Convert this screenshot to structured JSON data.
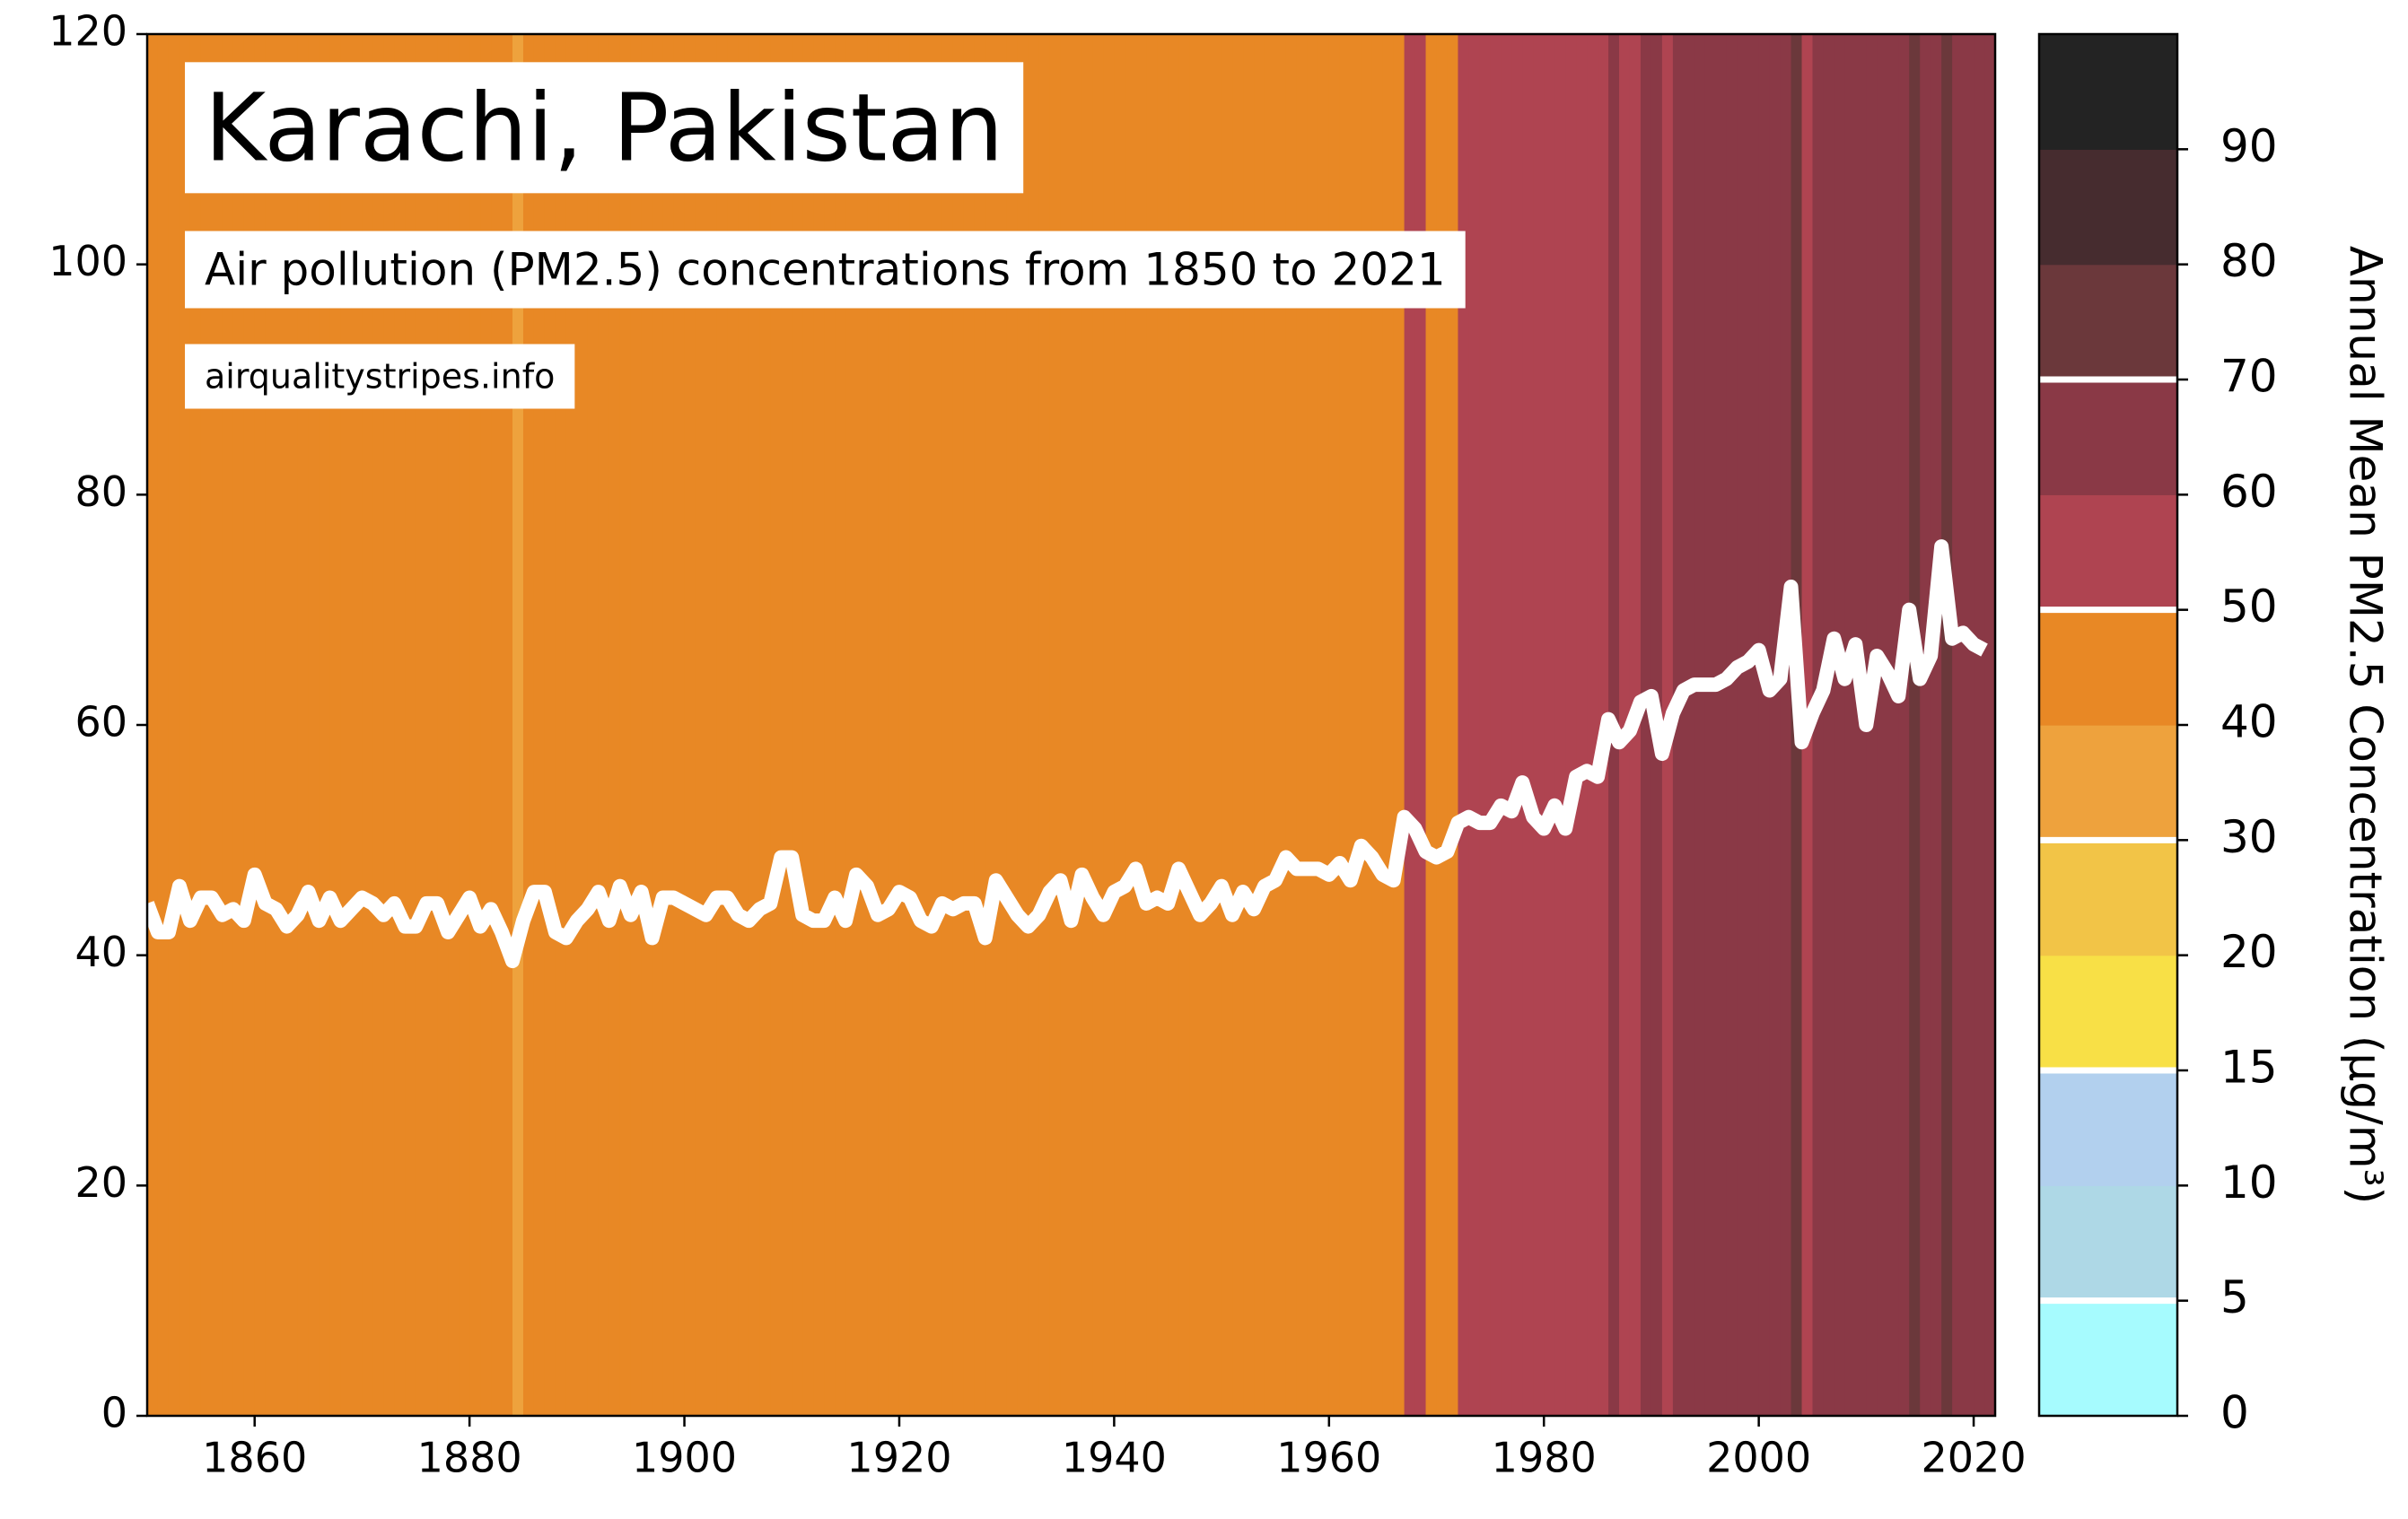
{
  "chart_data": {
    "type": "line",
    "title": "Karachi, Pakistan",
    "subtitle": "Air pollution (PM2.5) concentrations from 1850 to 2021",
    "source": "airqualitystripes.info",
    "colorbar_label": "Annual Mean PM2.5 Concentration (µg/m³)",
    "x": [
      1850,
      1851,
      1852,
      1853,
      1854,
      1855,
      1856,
      1857,
      1858,
      1859,
      1860,
      1861,
      1862,
      1863,
      1864,
      1865,
      1866,
      1867,
      1868,
      1869,
      1870,
      1871,
      1872,
      1873,
      1874,
      1875,
      1876,
      1877,
      1878,
      1879,
      1880,
      1881,
      1882,
      1883,
      1884,
      1885,
      1886,
      1887,
      1888,
      1889,
      1890,
      1891,
      1892,
      1893,
      1894,
      1895,
      1896,
      1897,
      1898,
      1899,
      1900,
      1901,
      1902,
      1903,
      1904,
      1905,
      1906,
      1907,
      1908,
      1909,
      1910,
      1911,
      1912,
      1913,
      1914,
      1915,
      1916,
      1917,
      1918,
      1919,
      1920,
      1921,
      1922,
      1923,
      1924,
      1925,
      1926,
      1927,
      1928,
      1929,
      1930,
      1931,
      1932,
      1933,
      1934,
      1935,
      1936,
      1937,
      1938,
      1939,
      1940,
      1941,
      1942,
      1943,
      1944,
      1945,
      1946,
      1947,
      1948,
      1949,
      1950,
      1951,
      1952,
      1953,
      1954,
      1955,
      1956,
      1957,
      1958,
      1959,
      1960,
      1961,
      1962,
      1963,
      1964,
      1965,
      1966,
      1967,
      1968,
      1969,
      1970,
      1971,
      1972,
      1973,
      1974,
      1975,
      1976,
      1977,
      1978,
      1979,
      1980,
      1981,
      1982,
      1983,
      1984,
      1985,
      1986,
      1987,
      1988,
      1989,
      1990,
      1991,
      1992,
      1993,
      1994,
      1995,
      1996,
      1997,
      1998,
      1999,
      2000,
      2001,
      2002,
      2003,
      2004,
      2005,
      2006,
      2007,
      2008,
      2009,
      2010,
      2011,
      2012,
      2013,
      2014,
      2015,
      2016,
      2017,
      2018,
      2019,
      2020,
      2021
    ],
    "values": [
      44.5,
      42,
      42,
      46,
      43,
      45,
      45,
      43.5,
      44,
      43,
      47,
      44.5,
      44,
      42.5,
      43.5,
      45.5,
      43,
      45,
      43,
      44,
      45,
      44.5,
      43.5,
      44.5,
      42.5,
      42.5,
      44.5,
      44.5,
      42,
      43.5,
      45,
      42.5,
      44,
      42,
      39.5,
      43,
      45.5,
      45.5,
      42,
      41.5,
      43,
      44,
      45.5,
      43,
      46,
      43.5,
      45.5,
      41.5,
      45,
      45,
      44.5,
      44,
      43.5,
      45,
      45,
      43.5,
      43,
      44,
      44.5,
      48.5,
      48.5,
      43.5,
      43,
      43,
      45,
      43,
      47,
      46,
      43.5,
      44,
      45.5,
      45,
      43,
      42.5,
      44.5,
      44,
      44.5,
      44.5,
      41.5,
      46.5,
      45,
      43.5,
      42.5,
      43.5,
      45.5,
      46.5,
      43,
      47,
      45,
      43.5,
      45.5,
      46,
      47.5,
      44.5,
      45,
      44.5,
      47.5,
      45.5,
      43.5,
      44.5,
      46,
      43.5,
      45.5,
      44,
      46,
      46.5,
      48.5,
      47.5,
      47.5,
      47.5,
      47,
      48,
      46.5,
      49.5,
      48.5,
      47,
      46.5,
      52,
      51,
      49,
      48.5,
      49,
      51.5,
      52,
      51.5,
      51.5,
      53,
      52.5,
      55,
      52,
      51,
      53,
      51,
      55.5,
      56,
      55.5,
      60.5,
      58.5,
      59.5,
      62,
      62.5,
      57.5,
      61,
      63,
      63.5,
      63.5,
      63.5,
      64,
      65,
      65.5,
      66.5,
      63,
      64,
      72,
      58.5,
      61,
      63,
      67.5,
      64,
      67,
      60,
      66,
      64.5,
      62.5,
      70,
      64,
      66,
      75.5,
      67.5,
      68,
      67,
      66.5
    ],
    "line_color": "#ffffff",
    "xlim": [
      1850,
      2022
    ],
    "xticks": [
      1860,
      1880,
      1900,
      1920,
      1940,
      1960,
      1980,
      2000,
      2020
    ],
    "ylim": [
      0,
      120
    ],
    "yticks": [
      0,
      20,
      40,
      60,
      80,
      100,
      120
    ],
    "colorbar": {
      "ticks": [
        0,
        5,
        10,
        15,
        20,
        30,
        40,
        50,
        60,
        70,
        80,
        90
      ],
      "colors": [
        "#a6fbfe",
        "#aed8e6",
        "#b2d0ee",
        "#f8e046",
        "#f2c447",
        "#eea23d",
        "#e88825",
        "#af4451",
        "#8a3946",
        "#6b383b",
        "#462c2f",
        "#232323"
      ],
      "markers": [
        5,
        15,
        30,
        50,
        70
      ]
    }
  }
}
